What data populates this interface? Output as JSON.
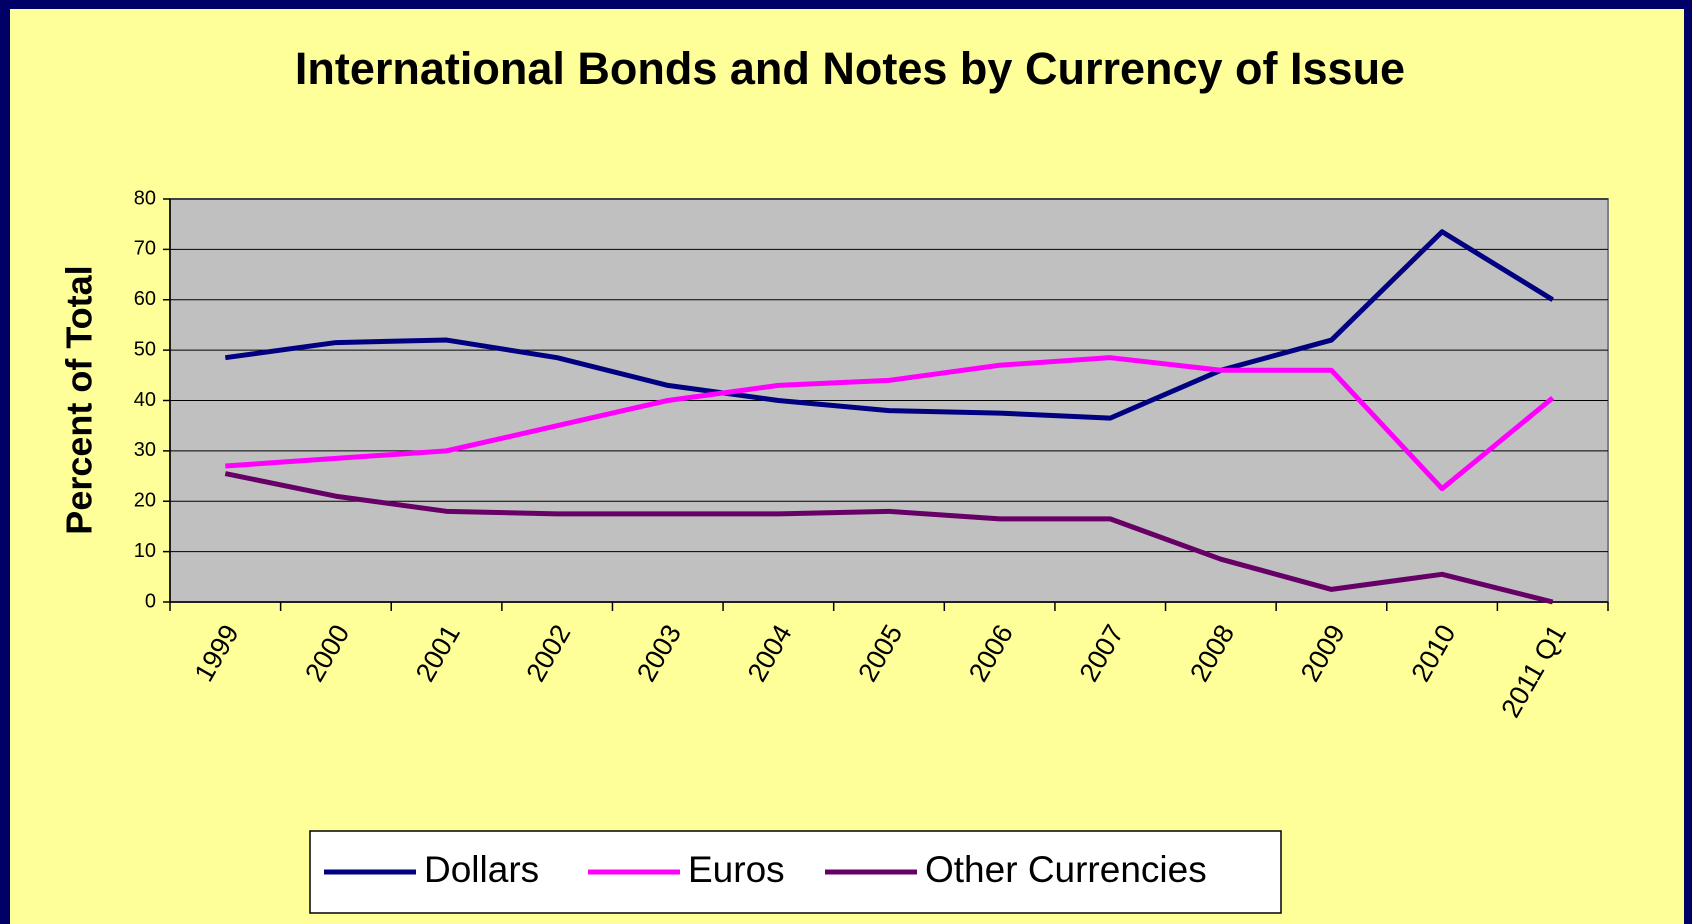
{
  "chart_data": {
    "type": "line",
    "title": "International Bonds and Notes by Currency of Issue",
    "y_label": "Percent of Total",
    "categories": [
      "1999",
      "2000",
      "2001",
      "2002",
      "2003",
      "2004",
      "2005",
      "2006",
      "2007",
      "2008",
      "2009",
      "2010",
      "2011 Q1"
    ],
    "series": [
      {
        "name": "Dollars",
        "color": "#000080",
        "values": [
          48.5,
          51.5,
          52,
          48.5,
          43,
          40,
          38,
          37.5,
          36.5,
          46,
          52,
          73.5,
          60
        ]
      },
      {
        "name": "Euros",
        "color": "#ff00ff",
        "values": [
          27,
          28.5,
          30,
          35,
          40,
          43,
          44,
          47,
          48.5,
          46,
          46,
          22.5,
          40.5
        ]
      },
      {
        "name": "Other Currencies",
        "color": "#660066",
        "values": [
          25.5,
          21,
          18,
          17.5,
          17.5,
          17.5,
          18,
          16.5,
          16.5,
          8.5,
          2.5,
          5.5,
          0
        ]
      }
    ],
    "ylim": [
      0,
      80
    ],
    "yticks": [
      0,
      10,
      20,
      30,
      40,
      50,
      60,
      70,
      80
    ],
    "grid": true,
    "legend": "bottom"
  }
}
